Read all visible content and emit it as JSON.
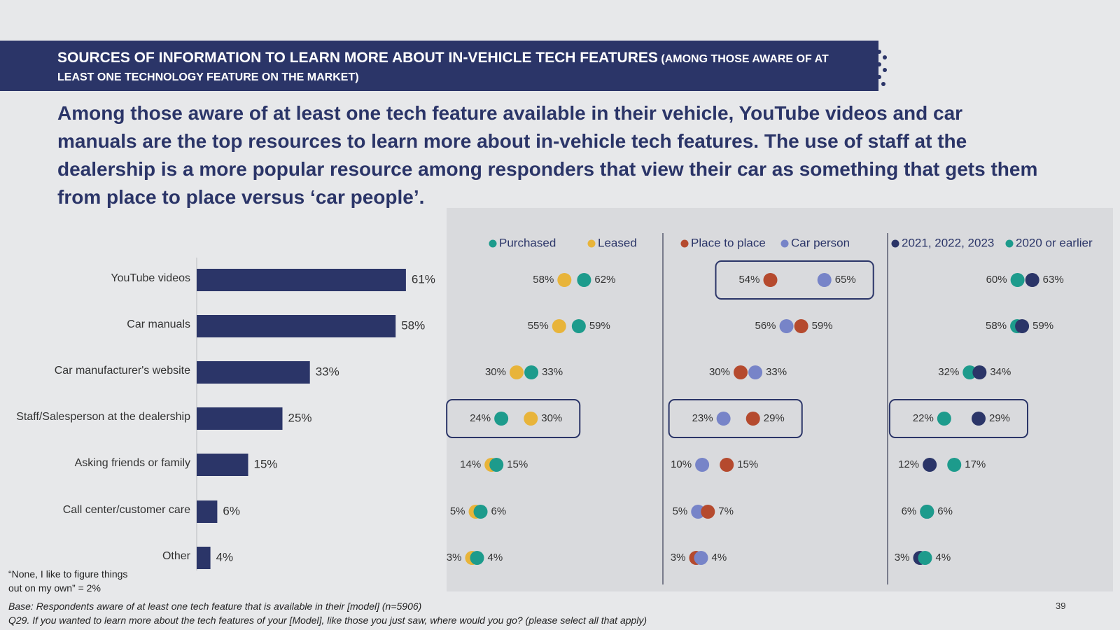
{
  "header": {
    "title": "SOURCES OF INFORMATION TO LEARN MORE ABOUT IN-VEHICLE TECH FEATURES",
    "subtitle": "(AMONG THOSE AWARE OF AT LEAST ONE TECHNOLOGY FEATURE ON THE MARKET)"
  },
  "headline": "Among those aware of at least one tech feature available in their vehicle, YouTube videos and car manuals are the top resources to learn more about in-vehicle tech features.  The use of staff at the dealership is a more popular resource among responders that view their car as something that gets them from place to place versus ‘car people’.",
  "colors": {
    "navy": "#2b3568",
    "purchased": "#1d9b8c",
    "leased": "#e8b43a",
    "place": "#b54a2e",
    "car_person": "#7784c8",
    "new": "#2b3568",
    "older": "#1d9b8c"
  },
  "chart_data": {
    "type": "bar",
    "categories": [
      "YouTube videos",
      "Car manuals",
      "Car manufacturer's website",
      "Staff/Salesperson at the dealership",
      "Asking friends or family",
      "Call center/customer care",
      "Other"
    ],
    "values": [
      61,
      58,
      33,
      25,
      15,
      6,
      4
    ],
    "value_labels": [
      "61%",
      "58%",
      "33%",
      "25%",
      "15%",
      "6%",
      "4%"
    ],
    "unit": "%",
    "comparisons": [
      {
        "series": [
          {
            "name": "Purchased",
            "color": "#1d9b8c",
            "values": [
              62,
              59,
              33,
              24,
              15,
              6,
              4
            ]
          },
          {
            "name": "Leased",
            "color": "#e8b43a",
            "values": [
              58,
              55,
              30,
              30,
              14,
              5,
              3
            ]
          }
        ],
        "left_labels": [
          "58%",
          "55%",
          "30%",
          "24%",
          "14%",
          "5%",
          "3%"
        ],
        "right_labels": [
          "62%",
          "59%",
          "33%",
          "30%",
          "15%",
          "6%",
          "4%"
        ]
      },
      {
        "series": [
          {
            "name": "Place to place",
            "color": "#b54a2e",
            "values": [
              54,
              59,
              30,
              29,
              15,
              7,
              3
            ]
          },
          {
            "name": "Car person",
            "color": "#7784c8",
            "values": [
              65,
              56,
              33,
              23,
              10,
              5,
              4
            ]
          }
        ],
        "left_labels": [
          "54%",
          "56%",
          "30%",
          "23%",
          "10%",
          "5%",
          "3%"
        ],
        "right_labels": [
          "65%",
          "59%",
          "33%",
          "29%",
          "15%",
          "7%",
          "4%"
        ]
      },
      {
        "series": [
          {
            "name": "2021, 2022, 2023",
            "color": "#2b3568",
            "values": [
              63,
              59,
              34,
              29,
              12,
              6,
              3
            ]
          },
          {
            "name": "2020 or earlier",
            "color": "#1d9b8c",
            "values": [
              60,
              58,
              32,
              22,
              17,
              6,
              4
            ]
          }
        ],
        "left_labels": [
          "60%",
          "58%",
          "32%",
          "22%",
          "12%",
          "6%",
          "3%"
        ],
        "right_labels": [
          "63%",
          "59%",
          "34%",
          "29%",
          "17%",
          "6%",
          "4%"
        ]
      }
    ],
    "highlights": [
      {
        "group": 0,
        "category_index": 3
      },
      {
        "group": 1,
        "category_index": 0
      },
      {
        "group": 1,
        "category_index": 3
      },
      {
        "group": 2,
        "category_index": 3
      }
    ]
  },
  "note": {
    "line1": "“None, I like to figure things",
    "line2": "out on my own” =  2%"
  },
  "footer": {
    "base": "Base: Respondents aware of at least one tech feature that is available in their [model] (n=5906)",
    "question": "Q29. If you wanted to learn more about the tech features of your [Model], like those you just saw, where would you go? (please select all that apply)",
    "page_number": "39"
  }
}
